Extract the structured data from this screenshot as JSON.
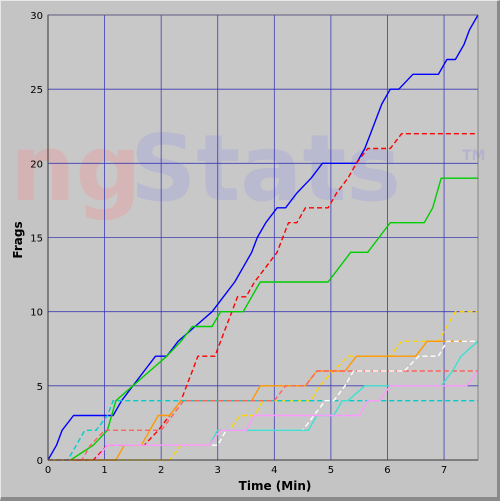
{
  "watermark": {
    "text_left": "ng",
    "text_right": "Stats",
    "tm": "TM",
    "color_left": "#e6a0a0",
    "color_right": "#a8a8d8"
  },
  "chart_data": {
    "type": "line",
    "xlabel": "Time (Min)",
    "ylabel": "Frags",
    "xlim": [
      0,
      7.6
    ],
    "ylim": [
      0,
      30
    ],
    "x_ticks": [
      0,
      1,
      2,
      3,
      4,
      5,
      6,
      7
    ],
    "y_ticks": [
      0,
      5,
      10,
      15,
      20,
      25,
      30
    ],
    "grid": true,
    "plot_background": "#c8c8c8",
    "grid_color": "#3c3cb4",
    "series": [
      {
        "color": "#0000ff",
        "dash": false,
        "points": [
          [
            0,
            0
          ],
          [
            0.15,
            1
          ],
          [
            0.25,
            2
          ],
          [
            0.45,
            3
          ],
          [
            1.15,
            3
          ],
          [
            1.3,
            4
          ],
          [
            1.5,
            5
          ],
          [
            1.7,
            6
          ],
          [
            1.9,
            7
          ],
          [
            2.1,
            7
          ],
          [
            2.3,
            8
          ],
          [
            2.6,
            9
          ],
          [
            2.9,
            10
          ],
          [
            3.1,
            11
          ],
          [
            3.3,
            12
          ],
          [
            3.45,
            13
          ],
          [
            3.6,
            14
          ],
          [
            3.7,
            15
          ],
          [
            3.85,
            16
          ],
          [
            4.05,
            17
          ],
          [
            4.2,
            17
          ],
          [
            4.4,
            18
          ],
          [
            4.65,
            19
          ],
          [
            4.85,
            20
          ],
          [
            5.45,
            20
          ],
          [
            5.6,
            21
          ],
          [
            5.7,
            22
          ],
          [
            5.8,
            23
          ],
          [
            5.9,
            24
          ],
          [
            6.05,
            25
          ],
          [
            6.2,
            25
          ],
          [
            6.45,
            26
          ],
          [
            6.9,
            26
          ],
          [
            7.05,
            27
          ],
          [
            7.2,
            27
          ],
          [
            7.35,
            28
          ],
          [
            7.45,
            29
          ],
          [
            7.6,
            30
          ]
        ]
      },
      {
        "color": "#ff0000",
        "dash": true,
        "points": [
          [
            0.5,
            0
          ],
          [
            0.8,
            0
          ],
          [
            1.05,
            1
          ],
          [
            1.7,
            1
          ],
          [
            1.95,
            2
          ],
          [
            2.15,
            3
          ],
          [
            2.35,
            4
          ],
          [
            2.45,
            5
          ],
          [
            2.55,
            6
          ],
          [
            2.65,
            7
          ],
          [
            2.95,
            7
          ],
          [
            3.05,
            8
          ],
          [
            3.15,
            9
          ],
          [
            3.25,
            10
          ],
          [
            3.35,
            11
          ],
          [
            3.5,
            11
          ],
          [
            3.65,
            12
          ],
          [
            3.85,
            13
          ],
          [
            4.05,
            14
          ],
          [
            4.15,
            15
          ],
          [
            4.25,
            16
          ],
          [
            4.4,
            16
          ],
          [
            4.55,
            17
          ],
          [
            4.95,
            17
          ],
          [
            5.1,
            18
          ],
          [
            5.3,
            19
          ],
          [
            5.45,
            20
          ],
          [
            5.65,
            21
          ],
          [
            6.05,
            21
          ],
          [
            6.25,
            22
          ],
          [
            7.6,
            22
          ]
        ]
      },
      {
        "color": "#00cc00",
        "dash": false,
        "points": [
          [
            0.4,
            0
          ],
          [
            0.8,
            1
          ],
          [
            1.05,
            2
          ],
          [
            1.2,
            4
          ],
          [
            1.5,
            5
          ],
          [
            1.8,
            6
          ],
          [
            2.1,
            7
          ],
          [
            2.35,
            8
          ],
          [
            2.55,
            9
          ],
          [
            2.9,
            9
          ],
          [
            3.05,
            10
          ],
          [
            3.45,
            10
          ],
          [
            3.6,
            11
          ],
          [
            3.75,
            12
          ],
          [
            4.95,
            12
          ],
          [
            5.15,
            13
          ],
          [
            5.35,
            14
          ],
          [
            5.65,
            14
          ],
          [
            5.85,
            15
          ],
          [
            6.05,
            16
          ],
          [
            6.65,
            16
          ],
          [
            6.8,
            17
          ],
          [
            6.95,
            19
          ],
          [
            7.6,
            19
          ]
        ]
      },
      {
        "color": "#ffd500",
        "dash": true,
        "points": [
          [
            0,
            0
          ],
          [
            1.95,
            0
          ],
          [
            2.15,
            0
          ],
          [
            2.35,
            1
          ],
          [
            2.55,
            1
          ],
          [
            2.85,
            1
          ],
          [
            3.05,
            2
          ],
          [
            3.2,
            2
          ],
          [
            3.4,
            3
          ],
          [
            3.65,
            3
          ],
          [
            3.8,
            4
          ],
          [
            4.65,
            4
          ],
          [
            4.8,
            5
          ],
          [
            5.05,
            6
          ],
          [
            5.3,
            7
          ],
          [
            6.05,
            7
          ],
          [
            6.25,
            8
          ],
          [
            6.9,
            8
          ],
          [
            7.05,
            9
          ],
          [
            7.2,
            10
          ],
          [
            7.6,
            10
          ]
        ]
      },
      {
        "color": "#ff9900",
        "dash": false,
        "points": [
          [
            0,
            0
          ],
          [
            1.2,
            0
          ],
          [
            1.35,
            1
          ],
          [
            1.65,
            1
          ],
          [
            1.8,
            2
          ],
          [
            1.95,
            3
          ],
          [
            2.15,
            3
          ],
          [
            2.35,
            4
          ],
          [
            3.45,
            4
          ],
          [
            3.6,
            4
          ],
          [
            3.75,
            5
          ],
          [
            4.2,
            5
          ],
          [
            4.55,
            5
          ],
          [
            4.75,
            6
          ],
          [
            5.25,
            6
          ],
          [
            5.45,
            7
          ],
          [
            6.5,
            7
          ],
          [
            6.7,
            8
          ],
          [
            7.4,
            8
          ]
        ]
      },
      {
        "color": "#00cccc",
        "dash": true,
        "points": [
          [
            0,
            0
          ],
          [
            0.35,
            0
          ],
          [
            0.5,
            1
          ],
          [
            0.65,
            2
          ],
          [
            0.85,
            2
          ],
          [
            1.05,
            3
          ],
          [
            1.15,
            4
          ],
          [
            7.6,
            4
          ]
        ]
      },
      {
        "color": "#ff6060",
        "dash": true,
        "points": [
          [
            0,
            0
          ],
          [
            0.6,
            0
          ],
          [
            0.75,
            1
          ],
          [
            1.0,
            2
          ],
          [
            2.0,
            2
          ],
          [
            2.2,
            3
          ],
          [
            2.4,
            4
          ],
          [
            4.0,
            4
          ],
          [
            4.2,
            5
          ],
          [
            4.55,
            5
          ],
          [
            4.75,
            6
          ],
          [
            7.6,
            6
          ]
        ]
      },
      {
        "color": "#ffffff",
        "dash": true,
        "points": [
          [
            2.9,
            1
          ],
          [
            3.0,
            1
          ],
          [
            3.15,
            2
          ],
          [
            3.35,
            2
          ],
          [
            3.55,
            2
          ],
          [
            3.75,
            2
          ],
          [
            4.5,
            2
          ],
          [
            4.7,
            3
          ],
          [
            4.9,
            4
          ],
          [
            5.05,
            4
          ],
          [
            5.25,
            5
          ],
          [
            5.4,
            6
          ],
          [
            6.3,
            6
          ],
          [
            6.55,
            7
          ],
          [
            6.9,
            7
          ],
          [
            7.05,
            8
          ],
          [
            7.6,
            8
          ]
        ]
      },
      {
        "color": "#40e0d0",
        "dash": false,
        "points": [
          [
            2.85,
            1
          ],
          [
            3.0,
            2
          ],
          [
            3.3,
            2
          ],
          [
            4.6,
            2
          ],
          [
            4.75,
            3
          ],
          [
            5.05,
            3
          ],
          [
            5.2,
            4
          ],
          [
            5.3,
            4
          ],
          [
            5.6,
            5
          ],
          [
            6.95,
            5
          ],
          [
            7.15,
            6
          ],
          [
            7.3,
            7
          ],
          [
            7.6,
            8
          ]
        ]
      },
      {
        "color": "#ff99ff",
        "dash": false,
        "points": [
          [
            0.85,
            0
          ],
          [
            1.05,
            1
          ],
          [
            2.85,
            1
          ],
          [
            3.05,
            2
          ],
          [
            3.5,
            2
          ],
          [
            3.65,
            3
          ],
          [
            5.5,
            3
          ],
          [
            5.65,
            4
          ],
          [
            5.85,
            4
          ],
          [
            6.05,
            5
          ],
          [
            7.4,
            5
          ],
          [
            7.6,
            6
          ]
        ]
      }
    ]
  }
}
